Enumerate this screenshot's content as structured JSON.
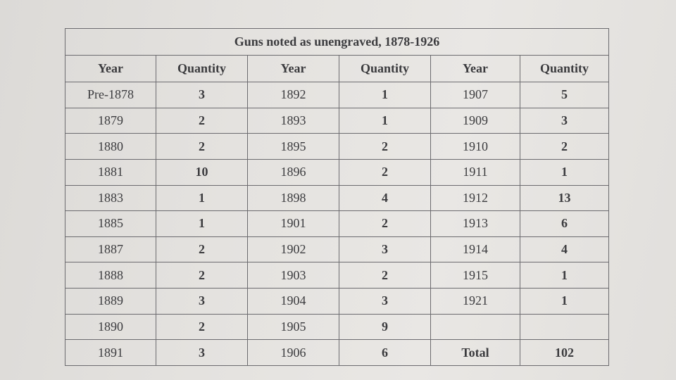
{
  "table": {
    "title": "Guns noted as unengraved, 1878-1926",
    "headers": [
      "Year",
      "Quantity",
      "Year",
      "Quantity",
      "Year",
      "Quantity"
    ],
    "rows": [
      [
        "Pre-1878",
        "3",
        "1892",
        "1",
        "1907",
        "5"
      ],
      [
        "1879",
        "2",
        "1893",
        "1",
        "1909",
        "3"
      ],
      [
        "1880",
        "2",
        "1895",
        "2",
        "1910",
        "2"
      ],
      [
        "1881",
        "10",
        "1896",
        "2",
        "1911",
        "1"
      ],
      [
        "1883",
        "1",
        "1898",
        "4",
        "1912",
        "13"
      ],
      [
        "1885",
        "1",
        "1901",
        "2",
        "1913",
        "6"
      ],
      [
        "1887",
        "2",
        "1902",
        "3",
        "1914",
        "4"
      ],
      [
        "1888",
        "2",
        "1903",
        "2",
        "1915",
        "1"
      ],
      [
        "1889",
        "3",
        "1904",
        "3",
        "1921",
        "1"
      ],
      [
        "1890",
        "2",
        "1905",
        "9",
        "",
        ""
      ],
      [
        "1891",
        "3",
        "1906",
        "6",
        "Total",
        "102"
      ]
    ]
  }
}
